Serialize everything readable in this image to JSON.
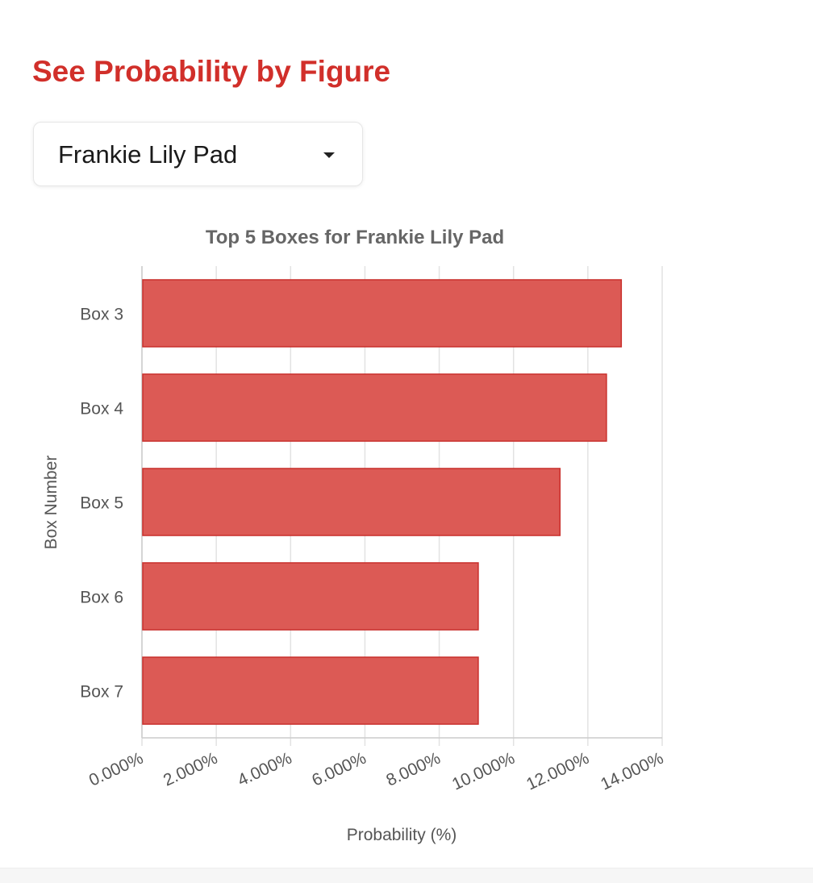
{
  "page": {
    "heading": "See Probability by Figure"
  },
  "selector": {
    "selected": "Frankie Lily Pad",
    "icon": "caret-down-icon"
  },
  "colors": {
    "accent": "#d12f2a",
    "bar_fill": "#dc5a55",
    "bar_stroke": "#c9302c",
    "text": "#555555",
    "grid": "#e2e2e2"
  },
  "chart_data": {
    "type": "bar",
    "orientation": "horizontal",
    "title": "Top 5 Boxes for Frankie Lily Pad",
    "xlabel": "Probability (%)",
    "ylabel": "Box Number",
    "categories": [
      "Box 3",
      "Box 4",
      "Box 5",
      "Box 6",
      "Box 7"
    ],
    "values": [
      12.9,
      12.5,
      11.25,
      9.05,
      9.05
    ],
    "xlim": [
      0,
      14
    ],
    "x_ticks": [
      "0.000%",
      "2.000%",
      "4.000%",
      "6.000%",
      "8.000%",
      "10.000%",
      "12.000%",
      "14.000%"
    ],
    "grid": true,
    "legend": false
  }
}
